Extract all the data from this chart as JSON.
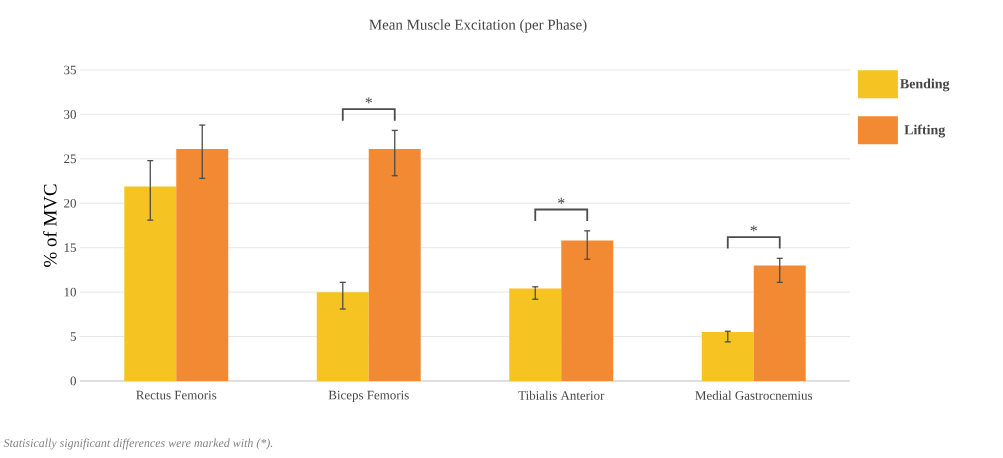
{
  "chart_data": {
    "type": "bar",
    "title": "Mean Muscle Excitation (per Phase)",
    "ylabel": "% of MVC",
    "categories": [
      "Rectus Femoris",
      "Biceps Femoris",
      "Tibialis Anterior",
      "Medial Gastrocnemius"
    ],
    "series": [
      {
        "name": "Bending",
        "color": "#f5c322",
        "values": [
          21.9,
          10.0,
          10.4,
          5.5
        ],
        "errors": [
          [
            18.1,
            24.8
          ],
          [
            8.1,
            11.1
          ],
          [
            9.2,
            10.6
          ],
          [
            4.4,
            5.6
          ]
        ]
      },
      {
        "name": "Lifting",
        "color": "#f28a33",
        "values": [
          26.1,
          26.1,
          15.8,
          13.0
        ],
        "errors": [
          [
            22.8,
            28.8
          ],
          [
            23.1,
            28.2
          ],
          [
            13.7,
            16.9
          ],
          [
            11.1,
            13.8
          ]
        ]
      }
    ],
    "ylim": [
      0,
      35
    ],
    "yticks": [
      0,
      5,
      10,
      15,
      20,
      25,
      30,
      35
    ],
    "grid": "y",
    "legend": "top right",
    "annotations": [
      "*",
      "*",
      "*",
      "Statisically significant differences were marked with (*)."
    ]
  }
}
